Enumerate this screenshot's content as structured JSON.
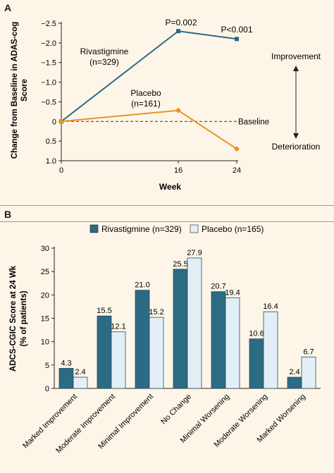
{
  "panels": [
    {
      "label": "A",
      "chart_data": {
        "type": "line",
        "x": [
          0,
          16,
          24
        ],
        "xlabel": "Week",
        "ylabel": "Change from Baseline in ADAS-cog Score",
        "ylim": [
          1.0,
          -2.5
        ],
        "xticks": [
          "0",
          "16",
          "24"
        ],
        "yticks": [
          "−2.5",
          "−2.0",
          "−1.5",
          "−1.0",
          "−0.5",
          "0",
          "0.5",
          "1.0"
        ],
        "series": [
          {
            "name": "Rivastigmine",
            "n_label": "(n=329)",
            "values": [
              0,
              -2.3,
              -2.1
            ],
            "color": "#2b6b84",
            "marker": "square"
          },
          {
            "name": "Placebo",
            "n_label": "(n=161)",
            "values": [
              0,
              -0.28,
              0.7
            ],
            "color": "#e8922a",
            "marker": "diamond"
          }
        ],
        "annotations": [
          "P=0.002",
          "P<0.001"
        ],
        "baseline_label": "Baseline",
        "arrow_up_label": "Improvement",
        "arrow_down_label": "Deterioration"
      }
    },
    {
      "label": "B",
      "chart_data": {
        "type": "bar",
        "categories": [
          "Marked Improvement",
          "Moderate Improvement",
          "Minimal Improvement",
          "No Change",
          "Minimal Worsening",
          "Moderate Worsening",
          "Marked Worsening"
        ],
        "series": [
          {
            "name": "Rivastigmine (n=329)",
            "values": [
              4.3,
              15.5,
              21.0,
              25.5,
              20.7,
              10.6,
              2.4
            ],
            "labels": [
              "4.3",
              "15.5",
              "21.0",
              "25.5",
              "20.7",
              "10.6",
              "2.4"
            ],
            "color": "#2b6b84"
          },
          {
            "name": "Placebo (n=165)",
            "values": [
              2.4,
              12.1,
              15.2,
              27.9,
              19.4,
              16.4,
              6.7
            ],
            "labels": [
              "2.4",
              "12.1",
              "15.2",
              "27.9",
              "19.4",
              "16.4",
              "6.7"
            ],
            "color": "#e3eff7"
          }
        ],
        "ylabel": "ADCS-CGIC Score at 24 Wk",
        "ylabel2": "(% of patients)",
        "ylim": [
          0,
          30
        ],
        "yticks": [
          "0",
          "5",
          "10",
          "15",
          "20",
          "25",
          "30"
        ]
      }
    }
  ]
}
